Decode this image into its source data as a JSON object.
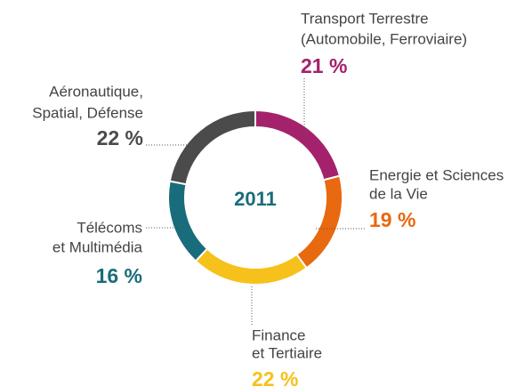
{
  "chart_data": {
    "type": "pie",
    "donut": true,
    "center_label": "2011",
    "categories": [
      [
        "Transport Terrestre",
        "(Automobile, Ferroviaire)"
      ],
      [
        "Energie et Sciences",
        "de la Vie"
      ],
      [
        "Finance",
        "et Tertiaire"
      ],
      [
        "Télécoms",
        "et Multimédia"
      ],
      [
        "Aéronautique,",
        "Spatial, Défense"
      ]
    ],
    "values": [
      21,
      19,
      22,
      16,
      22
    ],
    "value_labels": [
      "21 %",
      "19 %",
      "22 %",
      "16 %",
      "22 %"
    ],
    "colors": [
      "#a4226c",
      "#e8690f",
      "#f6c11a",
      "#196c7c",
      "#4b4b4b"
    ]
  }
}
